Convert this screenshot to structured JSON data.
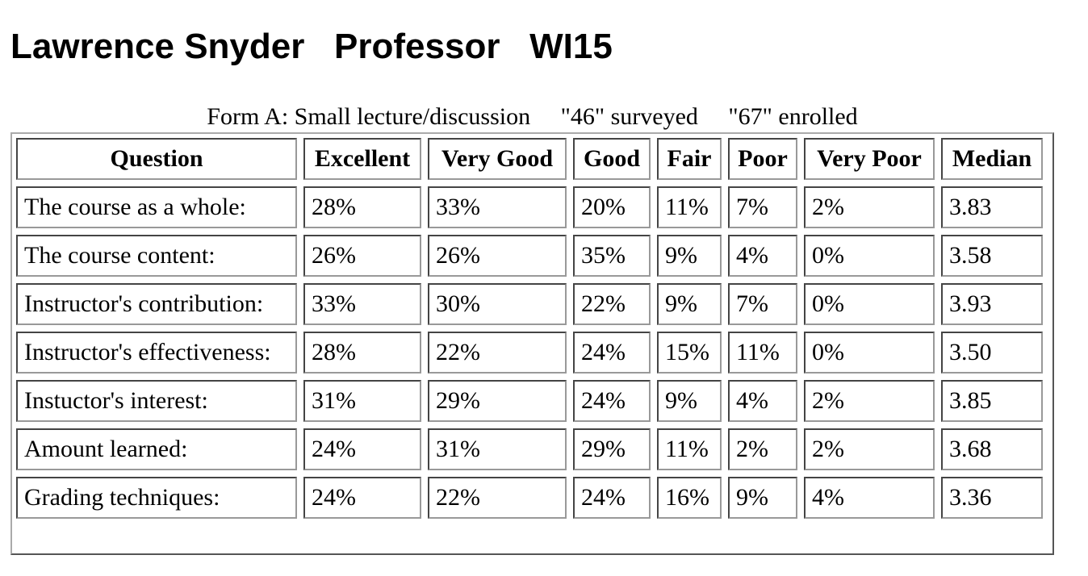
{
  "header": {
    "title": "Lawrence Snyder   Professor   WI15"
  },
  "caption": {
    "text": "Form A: Small lecture/discussion     \"46\" surveyed     \"67\" enrolled"
  },
  "table": {
    "columns": [
      "Question",
      "Excellent",
      "Very Good",
      "Good",
      "Fair",
      "Poor",
      "Very Poor",
      "Median"
    ],
    "rows": [
      [
        "The course as a whole:",
        "28%",
        "33%",
        "20%",
        "11%",
        "7%",
        "2%",
        "3.83"
      ],
      [
        "The course content:",
        "26%",
        "26%",
        "35%",
        "9%",
        "4%",
        "0%",
        "3.58"
      ],
      [
        "Instructor's contribution:",
        "33%",
        "30%",
        "22%",
        "9%",
        "7%",
        "0%",
        "3.93"
      ],
      [
        "Instructor's effectiveness:",
        "28%",
        "22%",
        "24%",
        "15%",
        "11%",
        "0%",
        "3.50"
      ],
      [
        "Instuctor's interest:",
        "31%",
        "29%",
        "24%",
        "9%",
        "4%",
        "2%",
        "3.85"
      ],
      [
        "Amount learned:",
        "24%",
        "31%",
        "29%",
        "11%",
        "2%",
        "2%",
        "3.68"
      ],
      [
        "Grading techniques:",
        "24%",
        "22%",
        "24%",
        "16%",
        "9%",
        "4%",
        "3.36"
      ]
    ]
  }
}
